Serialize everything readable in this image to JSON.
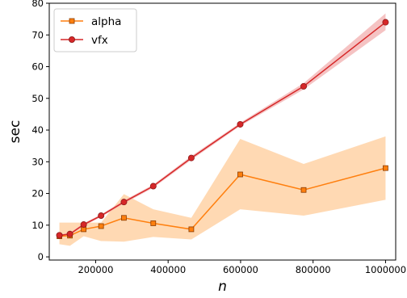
{
  "chart_data": {
    "type": "line",
    "xlabel": "n",
    "ylabel": "sec",
    "xlim": [
      72000,
      1028000
    ],
    "ylim": [
      -1,
      80
    ],
    "xticks": [
      200000,
      400000,
      600000,
      800000,
      1000000
    ],
    "xtick_labels": [
      "200000",
      "400000",
      "600000",
      "800000",
      "1000000"
    ],
    "yticks": [
      0,
      10,
      20,
      30,
      40,
      50,
      60,
      70,
      80
    ],
    "ytick_labels": [
      "0",
      "10",
      "20",
      "30",
      "40",
      "50",
      "60",
      "70",
      "80"
    ],
    "grid": false,
    "legend_position": "top-left",
    "series": [
      {
        "name": "alpha",
        "color": "#ff7f0e",
        "band_color": "#ffcc99",
        "marker": "square",
        "x": [
          100000,
          129000,
          167000,
          215000,
          278000,
          359000,
          464000,
          599000,
          774000,
          1000000
        ],
        "y": [
          6.5,
          6.7,
          8.7,
          9.7,
          12.3,
          10.6,
          8.7,
          26.0,
          21.1,
          28.0
        ],
        "lower": [
          4.0,
          3.5,
          6.5,
          5.0,
          4.8,
          6.3,
          5.5,
          15.0,
          13.0,
          18.0
        ],
        "upper": [
          10.8,
          10.8,
          10.8,
          10.8,
          19.8,
          15.0,
          12.3,
          37.2,
          29.3,
          38.0
        ]
      },
      {
        "name": "vfx",
        "color": "#d62728",
        "band_color": "#f1a9a9",
        "marker": "circle",
        "x": [
          100000,
          129000,
          167000,
          215000,
          278000,
          359000,
          464000,
          599000,
          774000,
          1000000
        ],
        "y": [
          6.8,
          7.2,
          10.2,
          13.0,
          17.3,
          22.3,
          31.2,
          41.8,
          53.8,
          74.0
        ],
        "lower": [
          6.5,
          6.8,
          9.8,
          12.6,
          16.8,
          21.8,
          30.6,
          41.3,
          52.8,
          71.5
        ],
        "upper": [
          7.1,
          7.6,
          10.6,
          13.4,
          17.8,
          22.8,
          31.8,
          42.3,
          54.8,
          76.8
        ]
      }
    ]
  }
}
